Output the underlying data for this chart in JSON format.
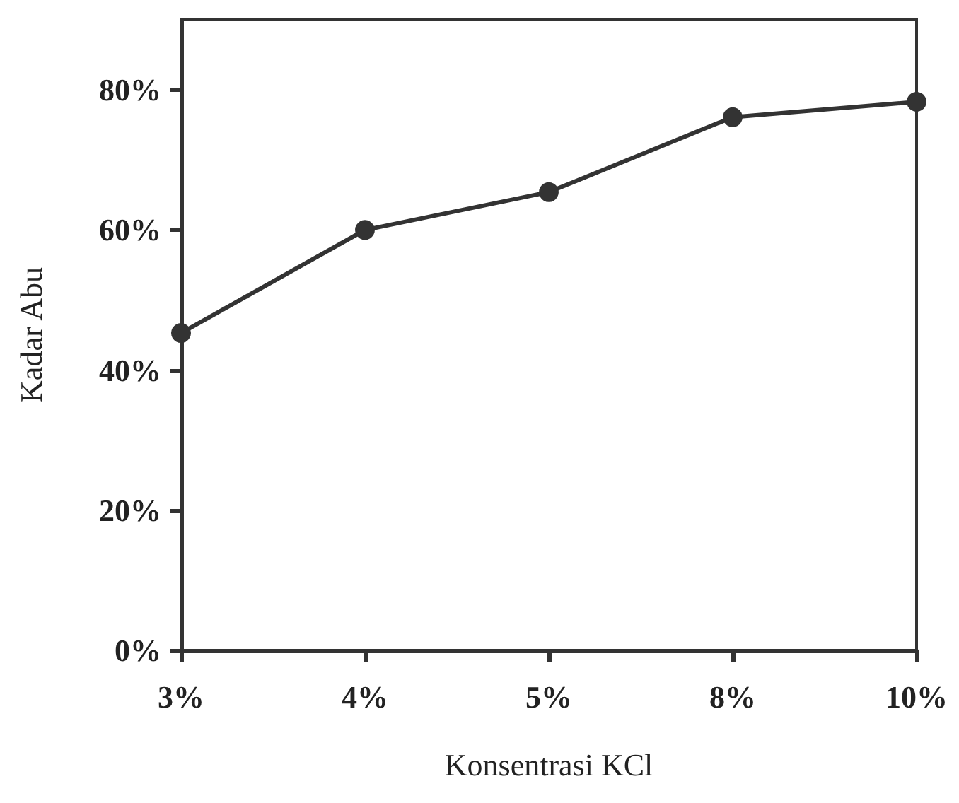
{
  "chart_data": {
    "type": "line",
    "xlabel": "Konsentrasi KCl",
    "ylabel": "Kadar Abu",
    "categories": [
      "3%",
      "4%",
      "5%",
      "8%",
      "10%"
    ],
    "series": [
      {
        "color": "#333333",
        "values": [
          45.3,
          60,
          65.4,
          76.1,
          78.3
        ]
      }
    ],
    "ylim": [
      0,
      90
    ],
    "yticks": [
      {
        "value": 0,
        "label": "0%"
      },
      {
        "value": 20,
        "label": "20%"
      },
      {
        "value": 40,
        "label": "40%"
      },
      {
        "value": 60,
        "label": "60%"
      },
      {
        "value": 80,
        "label": "80%"
      }
    ],
    "marker": "circle",
    "line_style": "solid"
  }
}
